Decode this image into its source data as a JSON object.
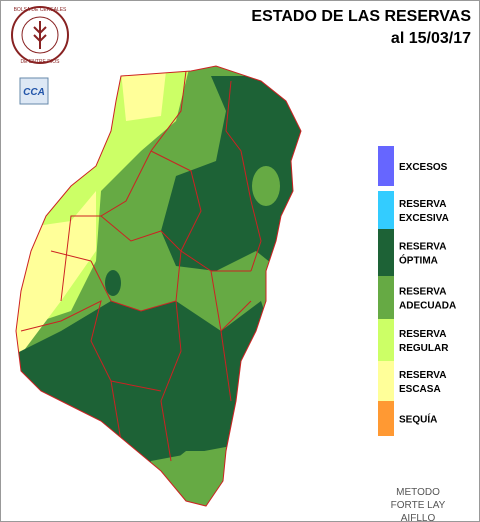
{
  "header": {
    "title": "ESTADO DE LAS RESERVAS",
    "date": "al 15/03/17"
  },
  "logo": {
    "top_text": "BOLSA DE CEREALES",
    "bottom_text": "DE ENTRE RIOS",
    "badge": "CCA"
  },
  "legend": [
    {
      "lines": [
        "EXCESOS"
      ],
      "color": "#6666ff"
    },
    {
      "lines": [
        "RESERVA",
        "EXCESIVA"
      ],
      "color": "#33ccff"
    },
    {
      "lines": [
        "RESERVA",
        "ÓPTIMA"
      ],
      "color": "#1d6236"
    },
    {
      "lines": [
        "RESERVA",
        "ADECUADA"
      ],
      "color": "#66aa44"
    },
    {
      "lines": [
        "RESERVA",
        "REGULAR"
      ],
      "color": "#ccff66"
    },
    {
      "lines": [
        "RESERVA",
        "ESCASA"
      ],
      "color": "#ffff99"
    },
    {
      "lines": [
        "SEQUÍA"
      ],
      "color": "#ff9933"
    }
  ],
  "method": [
    "METODO",
    "FORTE LAY",
    "AIFLLO"
  ]
}
